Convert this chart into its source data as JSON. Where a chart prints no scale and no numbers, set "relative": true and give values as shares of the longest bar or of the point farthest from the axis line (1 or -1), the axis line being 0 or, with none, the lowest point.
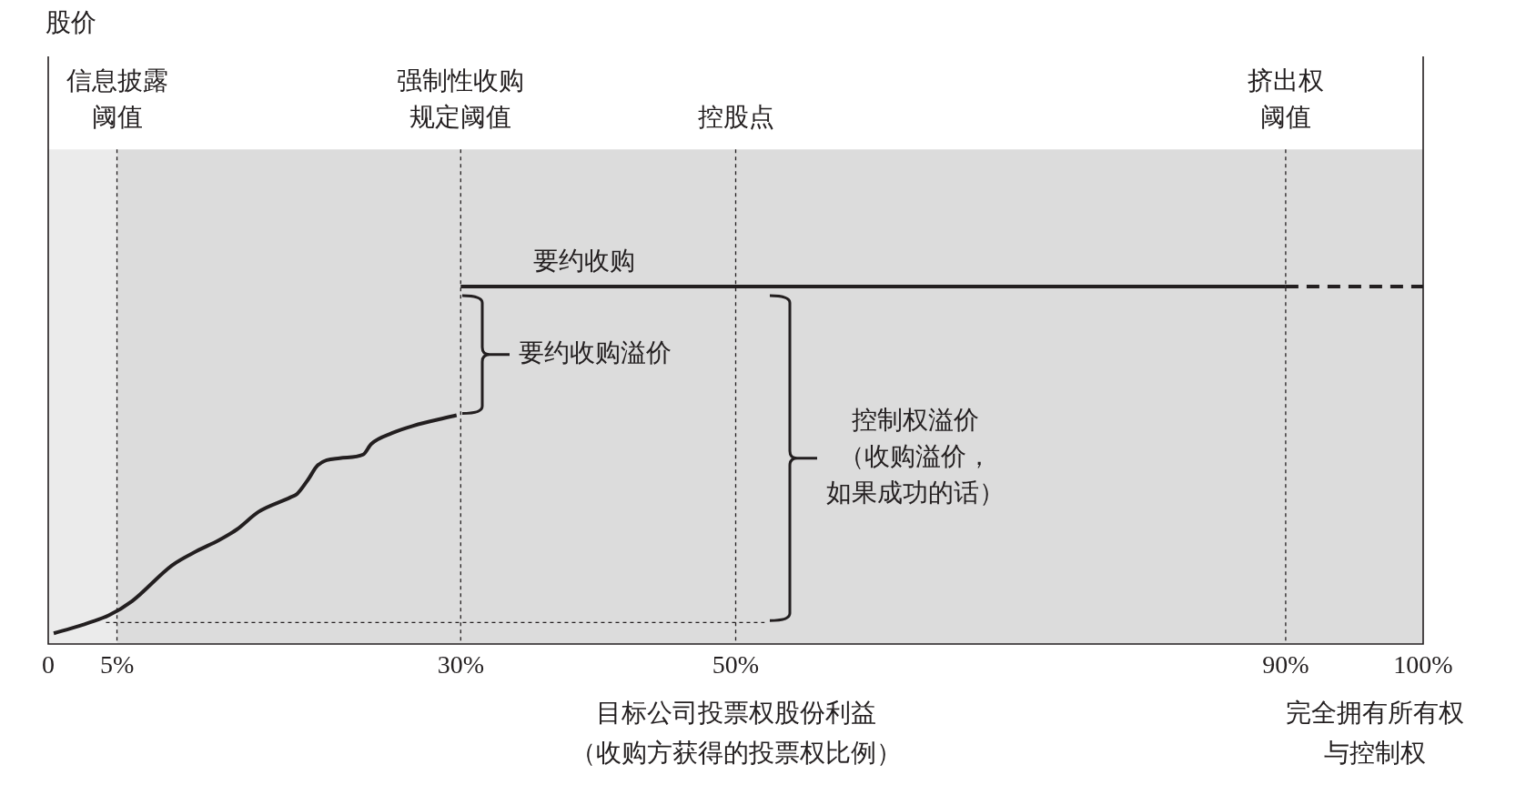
{
  "chart_data": {
    "type": "line",
    "relative": true,
    "xlabel": "目标公司投票权股份利益（收购方获得的投票权比例）",
    "xlim": [
      0,
      100
    ],
    "xticks": [
      0,
      {
        "value": 5,
        "label": "5%"
      },
      {
        "value": 30,
        "label": "30%"
      },
      {
        "value": 50,
        "label": "50%"
      },
      {
        "value": 90,
        "label": "90%"
      },
      {
        "value": 100,
        "label": "100%"
      }
    ],
    "series": [
      {
        "x": [
          0.4,
          2.2,
          3.0,
          4.4,
          6.1,
          9.0,
          10.8,
          12.4,
          13.7,
          15.3,
          17.6,
          18.1,
          18.9,
          19.6,
          21.2,
          22.9,
          23.5,
          25.0,
          26.5,
          29.7
        ],
        "values": [
          0.03,
          0.05,
          0.06,
          0.08,
          0.12,
          0.22,
          0.26,
          0.29,
          0.32,
          0.37,
          0.41,
          0.42,
          0.46,
          0.5,
          0.52,
          0.53,
          0.56,
          0.59,
          0.61,
          0.64
        ],
        "color": "#231f20",
        "line_style": "solid"
      },
      {
        "name": "要约收购",
        "x": [
          30,
          90
        ],
        "values": [
          1,
          1
        ],
        "color": "#231f20",
        "line_style": "solid"
      },
      {
        "x": [
          90,
          100
        ],
        "values": [
          1,
          1
        ],
        "color": "#231f20",
        "line_style": "dashed"
      },
      {
        "x": [
          4.2,
          52.1
        ],
        "values": [
          0.06,
          0.06
        ],
        "color": "#231f20",
        "line_style": "dotted"
      }
    ],
    "bands": [
      {
        "axis": "x",
        "from": 0,
        "to": 5,
        "color": "#ebebeb"
      },
      {
        "axis": "x",
        "from": 5,
        "to": 100,
        "color": "#dcdcdc"
      }
    ],
    "ref_lines": [
      {
        "axis": "x",
        "value": 5,
        "label": "信息披露阈值",
        "color": "#231f20",
        "line_style": "dotted"
      },
      {
        "axis": "x",
        "value": 30,
        "label": "强制性收购规定阈值",
        "color": "#231f20",
        "line_style": "dotted"
      },
      {
        "axis": "x",
        "value": 50,
        "label": "控股点",
        "color": "#231f20",
        "line_style": "dotted"
      },
      {
        "axis": "x",
        "value": 90,
        "label": "挤出权阈值",
        "color": "#231f20",
        "line_style": "dotted"
      }
    ],
    "annotations": [
      "股价",
      "要约收购溢价",
      "控制权溢价（收购溢价，如果成功的话）",
      "完全拥有所有权与控制权"
    ],
    "legend": false,
    "grid": false
  }
}
